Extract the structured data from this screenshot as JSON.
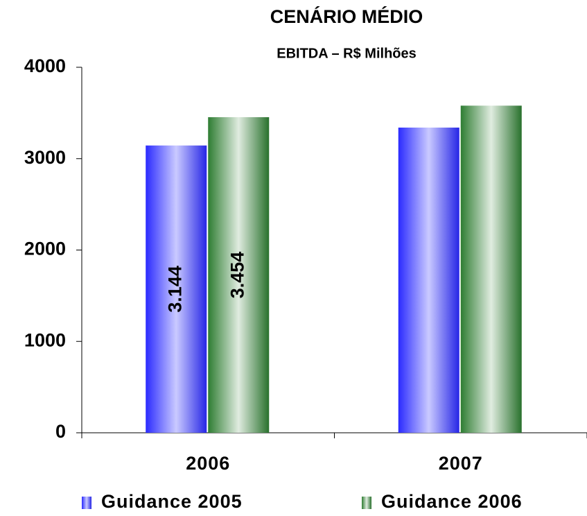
{
  "chart_data": {
    "type": "bar",
    "title": "CENÁRIO MÉDIO",
    "subtitle": "EBITDA – R$ Milhões",
    "categories": [
      "2006",
      "2007"
    ],
    "series": [
      {
        "name": "Guidance 2005",
        "color": "#2a2aff",
        "values": [
          3144,
          3340
        ],
        "value_labels": [
          "3.144",
          null
        ]
      },
      {
        "name": "Guidance 2006",
        "color": "#2e7d32",
        "values": [
          3454,
          3580
        ],
        "value_labels": [
          "3.454",
          null
        ]
      }
    ],
    "ylim": [
      0,
      4000
    ],
    "yticks": [
      0,
      1000,
      2000,
      3000,
      4000
    ],
    "grid": false,
    "legend": "bottom"
  }
}
